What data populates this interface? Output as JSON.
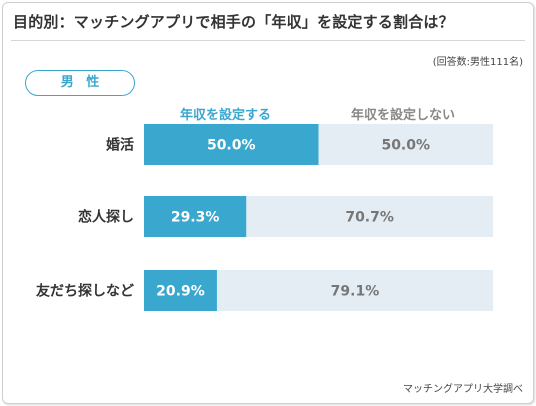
{
  "title": "目的別：マッチングアプリで相手の「年収」を設定する割合は？",
  "respondents": "(回答数:男性111名)",
  "group": "男 性",
  "credit": "マッチングアプリ大学調べ",
  "colors": {
    "set": "#3aa7cf",
    "not_set": "#e4edf3",
    "text_dark": "#333333",
    "text_gray": "#777777"
  },
  "chart_data": {
    "type": "bar",
    "orientation": "horizontal",
    "stacked": true,
    "title": "目的別：マッチングアプリで相手の「年収」を設定する割合は？",
    "categories": [
      "婚活",
      "恋人探し",
      "友だち探しなど"
    ],
    "series": [
      {
        "name": "年収を設定する",
        "values": [
          50.0,
          29.3,
          20.9
        ],
        "labels": [
          "50.0%",
          "29.3%",
          "20.9%"
        ]
      },
      {
        "name": "年収を設定しない",
        "values": [
          50.0,
          70.7,
          79.1
        ],
        "labels": [
          "50.0%",
          "70.7%",
          "79.1%"
        ]
      }
    ],
    "xlim": [
      0,
      100
    ],
    "grid": false,
    "legend": "top"
  }
}
